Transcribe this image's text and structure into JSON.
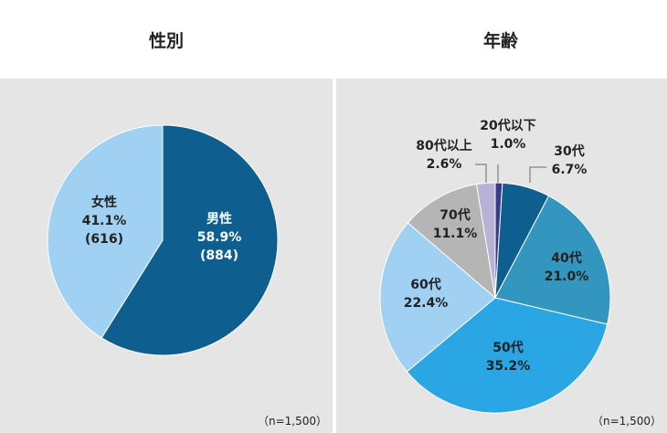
{
  "chart_data": [
    {
      "type": "pie",
      "title": "性別",
      "note": "（n=1,500）",
      "slices": [
        {
          "label": "男性",
          "value": 58.9,
          "value_text": "58.9%",
          "count_text": "(884)",
          "color": "#0e5f8f",
          "text_color": "#ffffff"
        },
        {
          "label": "女性",
          "value": 41.1,
          "value_text": "41.1%",
          "count_text": "(616)",
          "color": "#a0d0f2",
          "text_color": "#222222"
        }
      ]
    },
    {
      "type": "pie",
      "title": "年齢",
      "note": "（n=1,500）",
      "slices": [
        {
          "label": "20代以下",
          "value": 1.0,
          "value_text": "1.0%",
          "color": "#3a3a8c",
          "text_color": "#222222"
        },
        {
          "label": "30代",
          "value": 6.7,
          "value_text": "6.7%",
          "color": "#0e5f8f",
          "text_color": "#222222"
        },
        {
          "label": "40代",
          "value": 21.0,
          "value_text": "21.0%",
          "color": "#3396be",
          "text_color": "#222222"
        },
        {
          "label": "50代",
          "value": 35.2,
          "value_text": "35.2%",
          "color": "#29a6e3",
          "text_color": "#222222"
        },
        {
          "label": "60代",
          "value": 22.4,
          "value_text": "22.4%",
          "color": "#a0d0f2",
          "text_color": "#222222"
        },
        {
          "label": "70代",
          "value": 11.1,
          "value_text": "11.1%",
          "color": "#b5b5b5",
          "text_color": "#222222"
        },
        {
          "label": "80代以上",
          "value": 2.6,
          "value_text": "2.6%",
          "color": "#b9b1d6",
          "text_color": "#222222"
        }
      ]
    }
  ]
}
